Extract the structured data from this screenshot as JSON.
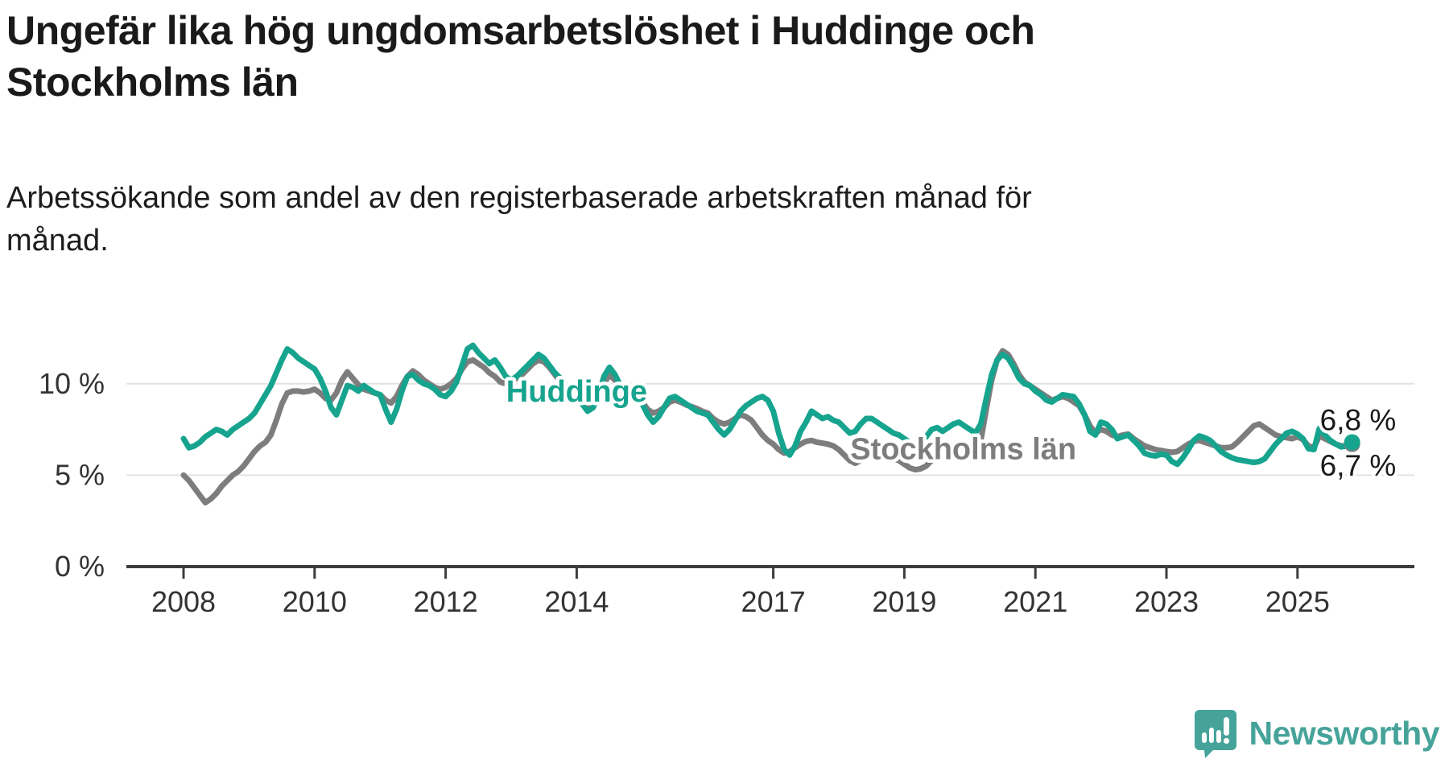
{
  "header": {
    "title_lines": [
      "Ungefär lika hög ungdomsarbetslöshet i Huddinge och",
      "Stockholms län"
    ],
    "subtitle_lines": [
      "Arbetssökande som andel av den registerbaserade arbetskraften månad för",
      "månad."
    ]
  },
  "footer": {
    "brand": "Newsworthy"
  },
  "colors": {
    "huddinge": "#16a48e",
    "stockholm": "#7d7d7d",
    "grid": "#e3e3e3",
    "axis": "#3d3d3d",
    "tick_text": "#333333",
    "value_label": "#1a1a1a",
    "logo": "#46a39a"
  },
  "chart_data": {
    "type": "line",
    "title": "Ungefär lika hög ungdomsarbetslöshet i Huddinge och Stockholms län",
    "subtitle": "Arbetssökande som andel av den registerbaserade arbetskraften månad för månad.",
    "frequency": "monthly",
    "start": "2008-01",
    "end": "2025-11",
    "x_tick_years": [
      2008,
      2010,
      2012,
      2014,
      2017,
      2019,
      2021,
      2023,
      2025
    ],
    "y_ticks": [
      {
        "value": 0,
        "label": "0 %"
      },
      {
        "value": 5,
        "label": "5 %"
      },
      {
        "value": 10,
        "label": "10 %"
      }
    ],
    "ylim": [
      0,
      13
    ],
    "grid": "horizontal-only",
    "legend_position": "inline-labels",
    "series": [
      {
        "name": "Stockholms län",
        "end_label": "6,7 %",
        "label_anchor": {
          "year": 2019.9,
          "value": 6.45
        },
        "values": [
          5.0,
          4.7,
          4.3,
          3.9,
          3.5,
          3.7,
          4.0,
          4.4,
          4.7,
          5.0,
          5.2,
          5.5,
          5.9,
          6.3,
          6.6,
          6.8,
          7.2,
          8.0,
          8.9,
          9.5,
          9.6,
          9.6,
          9.55,
          9.6,
          9.7,
          9.5,
          9.2,
          9.1,
          9.5,
          10.2,
          10.65,
          10.3,
          9.95,
          9.7,
          9.6,
          9.5,
          9.4,
          9.1,
          8.95,
          9.3,
          9.9,
          10.4,
          10.7,
          10.5,
          10.2,
          10.0,
          9.8,
          9.7,
          9.8,
          10.0,
          10.3,
          10.8,
          11.2,
          11.3,
          11.1,
          10.9,
          10.6,
          10.4,
          10.1,
          10.0,
          10.1,
          10.3,
          10.5,
          10.8,
          11.1,
          11.3,
          11.2,
          10.9,
          10.5,
          10.1,
          9.8,
          9.5,
          9.3,
          8.9,
          8.6,
          8.8,
          9.3,
          10.0,
          10.5,
          10.2,
          9.8,
          9.5,
          9.2,
          9.1,
          9.0,
          8.6,
          8.4,
          8.5,
          8.7,
          9.0,
          9.1,
          9.0,
          8.85,
          8.75,
          8.65,
          8.5,
          8.4,
          8.1,
          7.9,
          7.8,
          7.9,
          8.1,
          8.3,
          8.2,
          8.0,
          7.6,
          7.2,
          6.9,
          6.7,
          6.4,
          6.2,
          6.3,
          6.5,
          6.7,
          6.85,
          6.9,
          6.8,
          6.75,
          6.7,
          6.6,
          6.4,
          6.1,
          5.8,
          5.65,
          5.8,
          6.1,
          6.3,
          6.25,
          6.1,
          6.0,
          5.9,
          5.8,
          5.6,
          5.4,
          5.3,
          5.35,
          5.5,
          5.8,
          6.1,
          6.3,
          6.4,
          6.45,
          6.5,
          6.45,
          6.4,
          6.3,
          6.9,
          8.6,
          10.2,
          11.3,
          11.8,
          11.6,
          11.1,
          10.5,
          10.1,
          9.9,
          9.7,
          9.5,
          9.3,
          9.1,
          9.2,
          9.3,
          9.2,
          9.0,
          8.8,
          8.3,
          7.7,
          7.3,
          7.5,
          7.4,
          7.2,
          7.1,
          7.2,
          7.25,
          7.0,
          6.8,
          6.6,
          6.5,
          6.4,
          6.35,
          6.3,
          6.25,
          6.3,
          6.5,
          6.7,
          6.85,
          6.9,
          6.8,
          6.7,
          6.6,
          6.5,
          6.5,
          6.55,
          6.8,
          7.1,
          7.4,
          7.7,
          7.8,
          7.6,
          7.4,
          7.2,
          7.1,
          7.05,
          7.0,
          7.1,
          6.95,
          6.6,
          6.5,
          7.15,
          7.0,
          6.85,
          6.7,
          6.6,
          6.6,
          6.7
        ]
      },
      {
        "name": "Huddinge",
        "end_label": "6,8 %",
        "label_anchor": {
          "year": 2014.0,
          "value": 9.6
        },
        "values": [
          7.0,
          6.5,
          6.6,
          6.8,
          7.1,
          7.3,
          7.5,
          7.4,
          7.2,
          7.5,
          7.7,
          7.9,
          8.1,
          8.4,
          8.9,
          9.4,
          9.9,
          10.6,
          11.3,
          11.9,
          11.7,
          11.4,
          11.2,
          11.0,
          10.8,
          10.3,
          9.6,
          8.7,
          8.3,
          9.1,
          9.9,
          9.8,
          9.6,
          9.9,
          9.7,
          9.5,
          9.4,
          8.6,
          7.9,
          8.6,
          9.6,
          10.4,
          10.5,
          10.2,
          10.0,
          9.9,
          9.7,
          9.4,
          9.3,
          9.6,
          10.1,
          11.0,
          11.9,
          12.1,
          11.7,
          11.4,
          11.1,
          11.3,
          10.9,
          10.4,
          10.2,
          10.4,
          10.7,
          11.0,
          11.3,
          11.6,
          11.4,
          11.0,
          10.6,
          10.3,
          9.9,
          9.6,
          9.4,
          8.9,
          8.5,
          8.7,
          9.4,
          10.4,
          10.9,
          10.5,
          9.9,
          9.6,
          9.3,
          9.1,
          8.9,
          8.3,
          7.9,
          8.2,
          8.7,
          9.2,
          9.3,
          9.1,
          8.9,
          8.7,
          8.5,
          8.4,
          8.3,
          7.9,
          7.5,
          7.2,
          7.5,
          8.0,
          8.5,
          8.8,
          9.0,
          9.2,
          9.3,
          9.1,
          8.5,
          7.3,
          6.4,
          6.1,
          6.6,
          7.4,
          7.9,
          8.5,
          8.3,
          8.1,
          8.2,
          8.0,
          7.9,
          7.6,
          7.3,
          7.4,
          7.8,
          8.1,
          8.1,
          7.9,
          7.7,
          7.5,
          7.3,
          7.2,
          7.0,
          6.8,
          6.6,
          6.8,
          7.1,
          7.5,
          7.6,
          7.4,
          7.6,
          7.8,
          7.9,
          7.7,
          7.5,
          7.3,
          7.8,
          9.2,
          10.5,
          11.3,
          11.6,
          11.4,
          10.9,
          10.3,
          10.0,
          9.9,
          9.6,
          9.4,
          9.1,
          9.0,
          9.2,
          9.4,
          9.35,
          9.3,
          8.9,
          8.3,
          7.4,
          7.2,
          7.9,
          7.8,
          7.5,
          7.0,
          7.1,
          7.2,
          6.9,
          6.6,
          6.2,
          6.1,
          6.05,
          6.15,
          6.1,
          5.75,
          5.6,
          5.95,
          6.4,
          6.9,
          7.15,
          7.05,
          6.9,
          6.6,
          6.3,
          6.1,
          5.95,
          5.85,
          5.8,
          5.75,
          5.7,
          5.75,
          5.9,
          6.3,
          6.7,
          7.0,
          7.3,
          7.4,
          7.25,
          7.0,
          6.45,
          6.4,
          7.55,
          7.2,
          6.9,
          6.7,
          6.55,
          6.6,
          6.8
        ]
      }
    ]
  }
}
